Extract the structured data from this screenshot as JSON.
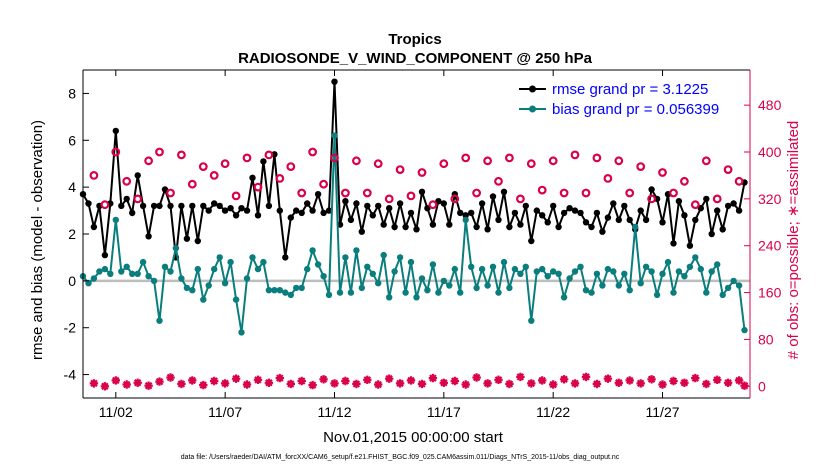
{
  "chart_data": {
    "type": "line",
    "title": "Tropics",
    "subtitle": "RADIOSONDE_V_WIND_COMPONENT @ 250 hPa",
    "xlabel": "Nov.01,2015 00:00:00 start",
    "ylabel": "rmse and bias (model - observation)",
    "y2label": "# of obs: o=possible; ∗=assimilated",
    "xlim": [
      0.5,
      31.0
    ],
    "ylim": [
      -5,
      9
    ],
    "y2lim": [
      -20,
      540
    ],
    "x_ticks": [
      2,
      7,
      12,
      17,
      22,
      27
    ],
    "x_tick_labels": [
      "11/02",
      "11/07",
      "11/12",
      "11/17",
      "11/22",
      "11/27"
    ],
    "y_ticks": [
      -4,
      -2,
      0,
      2,
      4,
      6,
      8
    ],
    "y2_ticks": [
      0,
      80,
      160,
      240,
      320,
      400,
      480
    ],
    "zero_line": 0,
    "legend_position": "top-right",
    "series": [
      {
        "name": "rmse grand pr = 3.1225",
        "color": "#000000",
        "marker": "dot",
        "axis": "left",
        "x": [
          0.5,
          0.75,
          1.0,
          1.25,
          1.5,
          1.75,
          2.0,
          2.25,
          2.5,
          2.75,
          3.0,
          3.25,
          3.5,
          3.75,
          4.0,
          4.25,
          4.5,
          4.75,
          5.0,
          5.25,
          5.5,
          5.75,
          6.0,
          6.25,
          6.5,
          6.75,
          7.0,
          7.25,
          7.5,
          7.75,
          8.0,
          8.25,
          8.5,
          8.75,
          9.0,
          9.25,
          9.5,
          9.75,
          10.0,
          10.25,
          10.5,
          10.75,
          11.0,
          11.25,
          11.5,
          11.75,
          12.0,
          12.25,
          12.5,
          12.75,
          13.0,
          13.25,
          13.5,
          13.75,
          14.0,
          14.25,
          14.5,
          14.75,
          15.0,
          15.25,
          15.5,
          15.75,
          16.0,
          16.25,
          16.5,
          16.75,
          17.0,
          17.25,
          17.5,
          17.75,
          18.0,
          18.25,
          18.5,
          18.75,
          19.0,
          19.25,
          19.5,
          19.75,
          20.0,
          20.25,
          20.5,
          20.75,
          21.0,
          21.25,
          21.5,
          21.75,
          22.0,
          22.25,
          22.5,
          22.75,
          23.0,
          23.25,
          23.5,
          23.75,
          24.0,
          24.25,
          24.5,
          24.75,
          25.0,
          25.25,
          25.5,
          25.75,
          26.0,
          26.25,
          26.5,
          26.75,
          27.0,
          27.25,
          27.5,
          27.75,
          28.0,
          28.25,
          28.5,
          28.75,
          29.0,
          29.25,
          29.5,
          29.75,
          30.0,
          30.25,
          30.5,
          30.75
        ],
        "values": [
          3.7,
          3.3,
          2.3,
          3.2,
          1.1,
          3.3,
          6.4,
          3.2,
          3.5,
          2.9,
          4.5,
          3.2,
          1.9,
          3.2,
          3.2,
          3.9,
          3.2,
          1.0,
          3.2,
          1.8,
          3.2,
          1.7,
          3.2,
          3.0,
          3.3,
          3.2,
          3.0,
          3.1,
          2.8,
          3.1,
          3.0,
          4.4,
          2.8,
          5.1,
          3.2,
          5.4,
          3.0,
          1.0,
          2.7,
          3.0,
          2.9,
          3.3,
          3.0,
          3.7,
          2.9,
          3.0,
          8.5,
          2.4,
          3.4,
          2.6,
          3.3,
          2.1,
          3.2,
          2.8,
          3.2,
          2.4,
          3.1,
          2.3,
          3.3,
          2.3,
          2.9,
          2.2,
          3.8,
          3.1,
          2.4,
          3.4,
          3.3,
          2.4,
          3.7,
          2.9,
          2.8,
          2.9,
          2.3,
          3.3,
          2.2,
          3.6,
          2.6,
          3.8,
          2.3,
          2.9,
          2.4,
          3.2,
          1.7,
          3.0,
          2.8,
          2.5,
          3.2,
          2.3,
          2.9,
          3.1,
          3.0,
          2.9,
          2.5,
          2.3,
          2.9,
          2.1,
          2.7,
          3.3,
          2.6,
          3.2,
          2.6,
          2.2,
          3.0,
          2.6,
          3.9,
          3.5,
          2.5,
          3.7,
          1.6,
          3.4,
          2.8,
          1.5,
          2.6,
          3.1,
          3.5,
          2.0,
          3.0,
          2.2,
          3.2,
          3.3,
          3.0,
          4.2
        ]
      },
      {
        "name": "bias grand pr = 0.056399",
        "color": "#0a7d7d",
        "marker": "dot",
        "axis": "left",
        "x": [
          0.5,
          0.75,
          1.0,
          1.25,
          1.5,
          1.75,
          2.0,
          2.25,
          2.5,
          2.75,
          3.0,
          3.25,
          3.5,
          3.75,
          4.0,
          4.25,
          4.5,
          4.75,
          5.0,
          5.25,
          5.5,
          5.75,
          6.0,
          6.25,
          6.5,
          6.75,
          7.0,
          7.25,
          7.5,
          7.75,
          8.0,
          8.25,
          8.5,
          8.75,
          9.0,
          9.25,
          9.5,
          9.75,
          10.0,
          10.25,
          10.5,
          10.75,
          11.0,
          11.25,
          11.5,
          11.75,
          12.0,
          12.25,
          12.5,
          12.75,
          13.0,
          13.25,
          13.5,
          13.75,
          14.0,
          14.25,
          14.5,
          14.75,
          15.0,
          15.25,
          15.5,
          15.75,
          16.0,
          16.25,
          16.5,
          16.75,
          17.0,
          17.25,
          17.5,
          17.75,
          18.0,
          18.25,
          18.5,
          18.75,
          19.0,
          19.25,
          19.5,
          19.75,
          20.0,
          20.25,
          20.5,
          20.75,
          21.0,
          21.25,
          21.5,
          21.75,
          22.0,
          22.25,
          22.5,
          22.75,
          23.0,
          23.25,
          23.5,
          23.75,
          24.0,
          24.25,
          24.5,
          24.75,
          25.0,
          25.25,
          25.5,
          25.75,
          26.0,
          26.25,
          26.5,
          26.75,
          27.0,
          27.25,
          27.5,
          27.75,
          28.0,
          28.25,
          28.5,
          28.75,
          29.0,
          29.25,
          29.5,
          29.75,
          30.0,
          30.25,
          30.5,
          30.75
        ],
        "values": [
          0.2,
          -0.1,
          0.1,
          0.4,
          0.5,
          0.3,
          2.6,
          0.4,
          0.6,
          0.3,
          0.3,
          0.8,
          0.2,
          0.0,
          -1.7,
          0.6,
          0.4,
          1.4,
          0.1,
          -0.3,
          -0.4,
          0.5,
          -0.8,
          -0.2,
          0.5,
          1.0,
          -0.1,
          0.8,
          -0.8,
          -2.2,
          0.1,
          1.0,
          0.5,
          0.8,
          -0.4,
          -0.4,
          -0.4,
          -0.5,
          -0.6,
          -0.3,
          -0.3,
          0.5,
          1.3,
          0.7,
          0.2,
          -0.6,
          6.2,
          -0.5,
          1.0,
          -0.5,
          1.3,
          -0.3,
          0.6,
          0.3,
          -0.1,
          1.1,
          -0.7,
          0.4,
          1.0,
          -0.5,
          0.8,
          -0.7,
          0.1,
          -0.4,
          0.7,
          -0.5,
          0.0,
          -0.2,
          0.5,
          -0.5,
          2.6,
          0.6,
          -0.3,
          0.5,
          -0.2,
          0.6,
          -0.5,
          0.8,
          -0.3,
          0.5,
          0.3,
          0.6,
          -1.7,
          0.4,
          0.5,
          0.2,
          0.4,
          0.3,
          -0.7,
          0.1,
          0.4,
          0.6,
          -0.4,
          -0.5,
          0.3,
          -0.2,
          0.5,
          0.4,
          -0.2,
          0.3,
          -0.4,
          2.3,
          -0.1,
          0.6,
          0.4,
          -0.6,
          0.3,
          0.8,
          -0.5,
          0.4,
          0.2,
          0.6,
          1.0,
          0.5,
          -0.5,
          0.4,
          0.7,
          -0.6,
          -0.3,
          0.0,
          -0.2,
          -2.1
        ]
      },
      {
        "name": "obs possible",
        "color": "#d9004c",
        "marker": "circle",
        "axis": "right",
        "x": [
          1.0,
          1.5,
          2.0,
          2.5,
          3.0,
          3.5,
          4.0,
          4.5,
          5.0,
          5.5,
          6.0,
          6.5,
          7.0,
          7.5,
          8.0,
          8.5,
          9.0,
          9.5,
          10.0,
          10.5,
          11.0,
          11.5,
          12.0,
          12.5,
          13.0,
          13.5,
          14.0,
          14.5,
          15.0,
          15.5,
          16.0,
          16.5,
          17.0,
          17.5,
          18.0,
          18.5,
          19.0,
          19.5,
          20.0,
          20.5,
          21.0,
          21.5,
          22.0,
          22.5,
          23.0,
          23.5,
          24.0,
          24.5,
          25.0,
          25.5,
          26.0,
          26.5,
          27.0,
          27.5,
          28.0,
          28.5,
          29.0,
          29.5,
          30.0,
          30.5
        ],
        "values": [
          360,
          310,
          400,
          350,
          320,
          385,
          400,
          330,
          395,
          345,
          375,
          360,
          380,
          325,
          390,
          340,
          395,
          355,
          375,
          330,
          400,
          345,
          390,
          330,
          385,
          330,
          380,
          320,
          370,
          325,
          365,
          310,
          380,
          320,
          390,
          330,
          385,
          350,
          390,
          320,
          380,
          335,
          385,
          330,
          395,
          330,
          390,
          355,
          385,
          330,
          375,
          320,
          365,
          330,
          350,
          310,
          385,
          320,
          370,
          350
        ]
      },
      {
        "name": "obs assimilated",
        "color": "#d9004c",
        "marker": "star",
        "axis": "right",
        "x": [
          1.0,
          1.5,
          2.0,
          2.5,
          3.0,
          3.5,
          4.0,
          4.5,
          5.0,
          5.5,
          6.0,
          6.5,
          7.0,
          7.5,
          8.0,
          8.5,
          9.0,
          9.5,
          10.0,
          10.5,
          11.0,
          11.5,
          12.0,
          12.5,
          13.0,
          13.5,
          14.0,
          14.5,
          15.0,
          15.5,
          16.0,
          16.5,
          17.0,
          17.5,
          18.0,
          18.5,
          19.0,
          19.5,
          20.0,
          20.5,
          21.0,
          21.5,
          22.0,
          22.5,
          23.0,
          23.5,
          24.0,
          24.5,
          25.0,
          25.5,
          26.0,
          26.5,
          27.0,
          27.5,
          28.0,
          28.5,
          29.0,
          29.5,
          30.0,
          30.5,
          30.75
        ],
        "values": [
          5,
          0,
          10,
          3,
          6,
          1,
          8,
          15,
          4,
          10,
          2,
          9,
          5,
          13,
          3,
          11,
          6,
          14,
          4,
          9,
          2,
          12,
          5,
          9,
          4,
          11,
          3,
          13,
          5,
          10,
          4,
          14,
          6,
          9,
          3,
          15,
          5,
          11,
          4,
          16,
          5,
          10,
          3,
          12,
          5,
          16,
          4,
          13,
          6,
          10,
          5,
          12,
          3,
          9,
          6,
          14,
          4,
          11,
          6,
          10,
          1
        ]
      }
    ]
  },
  "legend": {
    "rmse_label": "rmse grand pr = 3.1225",
    "bias_label": "bias grand pr = 0.056399"
  },
  "footnote": "data file: /Users/raeder/DAI/ATM_forcXX/CAM6_setup/f.e21.FHIST_BGC.f09_025.CAM6assim.011/Diags_NTrS_2015-11/obs_diag_output.nc"
}
